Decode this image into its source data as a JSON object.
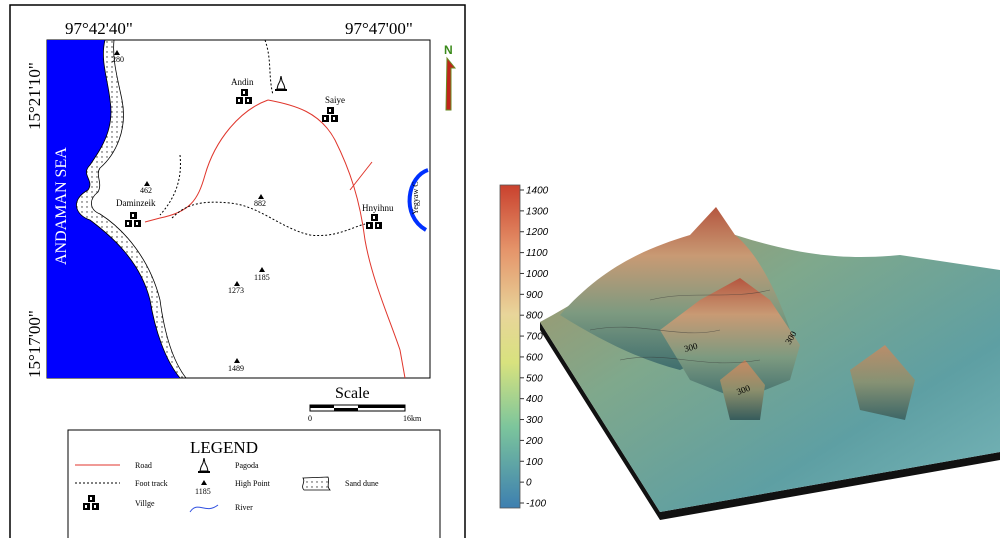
{
  "map": {
    "coordinates": {
      "top_left": "97°42'40\"",
      "top_right": "97°47'00\"",
      "left_top": "15°21'10\"",
      "left_bottom": "15°17'00\""
    },
    "sea_label": "ANDAMAN SEA",
    "north": "N",
    "villages": [
      "Andin",
      "Saiye",
      "Daminzeik",
      "Hnyihnu"
    ],
    "river_label": "Yegyaw C",
    "high_points": [
      "280",
      "462",
      "882",
      "1185",
      "1273",
      "1489"
    ],
    "scale": {
      "title": "Scale",
      "start": "0",
      "end": "16km"
    },
    "legend": {
      "title": "LEGEND",
      "road": "Road",
      "foot_track": "Foot track",
      "village": "Villge",
      "pagoda": "Pagoda",
      "high_point": "High Point",
      "high_point_sample": "1185",
      "sand_dune": "Sand dune",
      "river": "River"
    }
  },
  "terrain": {
    "colorbar_ticks": [
      1400,
      1300,
      1200,
      1100,
      1000,
      900,
      800,
      700,
      600,
      500,
      400,
      300,
      200,
      100,
      0,
      -100
    ],
    "contour_labels": [
      "300",
      "300",
      "300"
    ]
  }
}
